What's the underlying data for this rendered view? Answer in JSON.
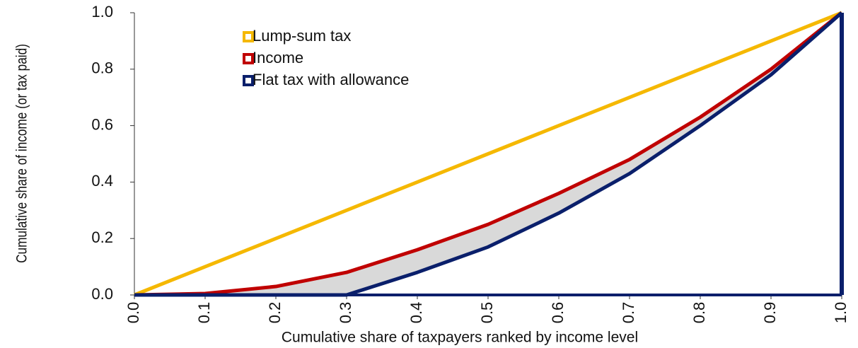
{
  "chart_data": {
    "type": "line",
    "xlabel": "Cumulative share of taxpayers ranked by income level",
    "ylabel": "Cumulative share of income  (or tax paid)",
    "x": [
      0,
      0.1,
      0.2,
      0.3,
      0.4,
      0.5,
      0.6,
      0.7,
      0.8,
      0.9,
      1
    ],
    "series": [
      {
        "name": "Lump-sum tax",
        "color": "#f5b800",
        "values": [
          0,
          0.1,
          0.2,
          0.3,
          0.4,
          0.5,
          0.6,
          0.7,
          0.8,
          0.9,
          1
        ]
      },
      {
        "name": "Income",
        "color": "#c00000",
        "values": [
          0,
          0.005,
          0.03,
          0.08,
          0.16,
          0.25,
          0.36,
          0.48,
          0.63,
          0.8,
          1
        ]
      },
      {
        "name": "Flat tax with allowance",
        "color": "#0a1f6b",
        "values": [
          0,
          0,
          0,
          0,
          0.08,
          0.17,
          0.29,
          0.43,
          0.6,
          0.78,
          1
        ]
      }
    ],
    "xlim": [
      0,
      1
    ],
    "ylim": [
      0,
      1
    ],
    "xticks": [
      {
        "value": 0,
        "label": "0.0"
      },
      0.1,
      0.2,
      0.3,
      0.4,
      0.5,
      0.6,
      0.7,
      0.8,
      0.9,
      {
        "value": 1,
        "label": "1.0"
      }
    ],
    "yticks": [
      {
        "value": 0,
        "label": "0.0"
      },
      0.2,
      0.4,
      0.6,
      0.8,
      {
        "value": 1,
        "label": "1.0"
      }
    ],
    "shade_color": "#d9d9d9",
    "legend": "upper left"
  }
}
